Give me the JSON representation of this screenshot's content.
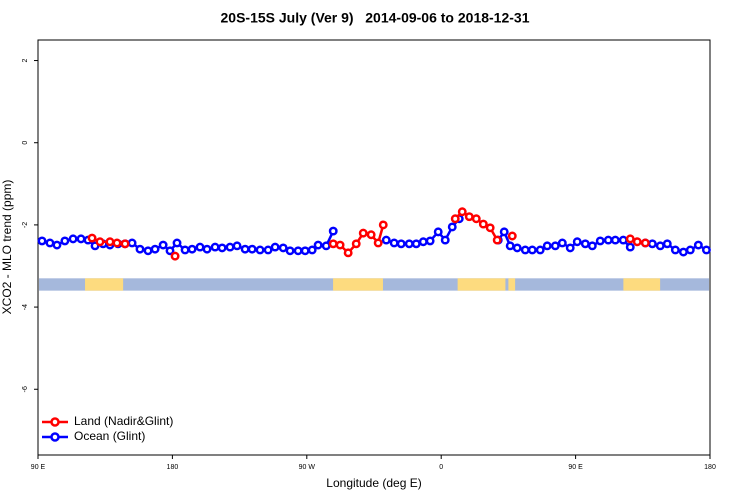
{
  "chart_data": {
    "type": "line",
    "title": "20S-15S July (Ver 9)   2014-09-06 to 2018-12-31",
    "x_label": "Longitude (deg E)",
    "y_label": "XCO2 - MLO trend (ppm)",
    "xlim": [
      90,
      540
    ],
    "xticks": [
      {
        "value": 90,
        "label": "90 E"
      },
      180,
      {
        "value": 270,
        "label": "90 W"
      },
      {
        "value": 360,
        "label": "0"
      },
      {
        "value": 450,
        "label": "90 E"
      },
      {
        "value": 540,
        "label": "180"
      }
    ],
    "ylim": [
      -7.6,
      2.5
    ],
    "yticks": [
      2,
      0,
      -2,
      -4,
      -6
    ],
    "legend": "bottom-left",
    "surface_band": {
      "ylim": [
        -3.6,
        -3.3
      ],
      "ocean_color": "#a5b8dc",
      "land_color": "#fddb7f",
      "land_spans": [
        [
          121.5,
          147
        ],
        [
          287.6,
          321
        ],
        [
          371,
          403
        ],
        [
          405,
          409.5
        ],
        [
          482,
          506.6
        ]
      ]
    },
    "series": [
      {
        "name": "Ocean (Glint)",
        "color": "#0000ff",
        "x": [
          92.7,
          98,
          102.7,
          108,
          113.5,
          118.8,
          123.5,
          128.2,
          133.6,
          138.2,
          143.6,
          148.3,
          153,
          158.3,
          163.7,
          168.4,
          173.8,
          178.4,
          183.1,
          188.5,
          193.2,
          198.5,
          203.2,
          208.6,
          213.3,
          218.6,
          223.3,
          228.7,
          233.4,
          238.7,
          244.1,
          248.8,
          254.2,
          258.8,
          264.2,
          268.9,
          273.6,
          277.6,
          283,
          287.7,
          323.2,
          328.5,
          333.2,
          338.6,
          343.3,
          348,
          352.6,
          358,
          362.7,
          367.4,
          372.1,
          398.2,
          402.2,
          406.2,
          410.9,
          416.3,
          421,
          426.3,
          431,
          436.4,
          441.1,
          446.4,
          451.1,
          456.5,
          461.2,
          466.5,
          471.9,
          476.6,
          481.9,
          486.6,
          496.7,
          501.4,
          506.7,
          511.4,
          516.8,
          522.2,
          526.8,
          532.2,
          537.6
        ],
        "values": [
          -2.39,
          -2.44,
          -2.49,
          -2.39,
          -2.34,
          -2.34,
          -2.37,
          -2.51,
          -2.46,
          -2.49,
          -2.46,
          -2.46,
          -2.44,
          -2.59,
          -2.63,
          -2.59,
          -2.49,
          -2.63,
          -2.44,
          -2.61,
          -2.59,
          -2.54,
          -2.59,
          -2.54,
          -2.56,
          -2.54,
          -2.51,
          -2.59,
          -2.59,
          -2.61,
          -2.61,
          -2.54,
          -2.56,
          -2.63,
          -2.63,
          -2.63,
          -2.61,
          -2.49,
          -2.51,
          -2.15,
          -2.37,
          -2.44,
          -2.46,
          -2.46,
          -2.46,
          -2.41,
          -2.39,
          -2.17,
          -2.37,
          -2.05,
          -1.85,
          -2.37,
          -2.17,
          -2.51,
          -2.56,
          -2.61,
          -2.61,
          -2.61,
          -2.51,
          -2.51,
          -2.44,
          -2.56,
          -2.41,
          -2.46,
          -2.51,
          -2.39,
          -2.37,
          -2.37,
          -2.37,
          -2.54,
          -2.44,
          -2.46,
          -2.51,
          -2.46,
          -2.61,
          -2.66,
          -2.61,
          -2.49,
          -2.61
        ]
      },
      {
        "name": "Land (Nadir&Glint)",
        "color": "#ff0000",
        "x": [
          126.2,
          131.5,
          138.2,
          142.9,
          148.3,
          181.8,
          287.7,
          292.3,
          297.7,
          303.1,
          307.8,
          313.1,
          317.8,
          321.2,
          369.4,
          374.1,
          378.8,
          383.5,
          388.2,
          392.8,
          397.5,
          407.6,
          486.6,
          491.3,
          496.7
        ],
        "values": [
          -2.32,
          -2.41,
          -2.41,
          -2.44,
          -2.46,
          -2.76,
          -2.46,
          -2.49,
          -2.68,
          -2.46,
          -2.2,
          -2.24,
          -2.44,
          -2.0,
          -1.85,
          -1.68,
          -1.8,
          -1.85,
          -1.98,
          -2.07,
          -2.37,
          -2.27,
          -2.34,
          -2.41,
          -2.44
        ]
      }
    ]
  }
}
